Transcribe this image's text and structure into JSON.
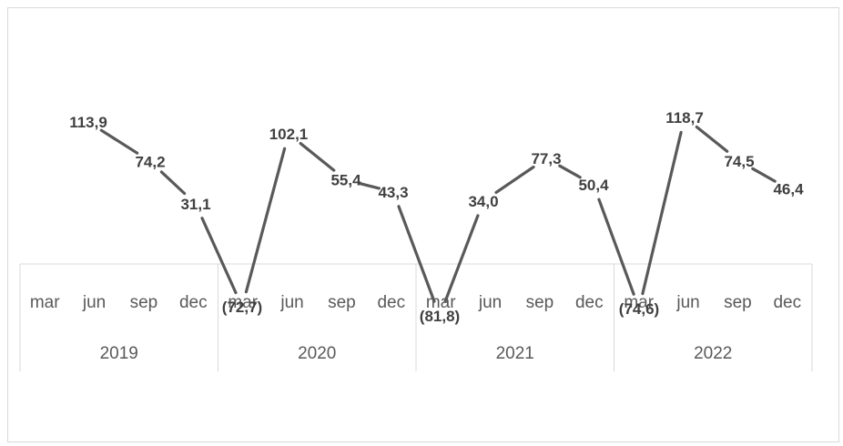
{
  "chart_data": {
    "type": "line",
    "title": "",
    "xlabel": "",
    "ylabel": "",
    "x_groups": [
      {
        "year": "2019",
        "months": [
          "mar",
          "jun",
          "sep",
          "dec"
        ]
      },
      {
        "year": "2020",
        "months": [
          "mar",
          "jun",
          "sep",
          "dec"
        ]
      },
      {
        "year": "2021",
        "months": [
          "mar",
          "jun",
          "sep",
          "dec"
        ]
      },
      {
        "year": "2022",
        "months": [
          "mar",
          "jun",
          "sep",
          "dec"
        ]
      }
    ],
    "values": [
      113.9,
      74.2,
      31.1,
      -72.7,
      102.1,
      55.4,
      43.3,
      -81.8,
      34.0,
      77.3,
      50.4,
      -74.6,
      118.7,
      74.5,
      46.4
    ],
    "labels": [
      "113,9",
      "74,2",
      "31,1",
      "(72,7)",
      "102,1",
      "55,4",
      "43,3",
      "(81,8)",
      "34,0",
      "77,3",
      "50,4",
      "(74,6)",
      "118,7",
      "74,5",
      "46,4"
    ],
    "line_color": "#595959",
    "grid": false
  }
}
